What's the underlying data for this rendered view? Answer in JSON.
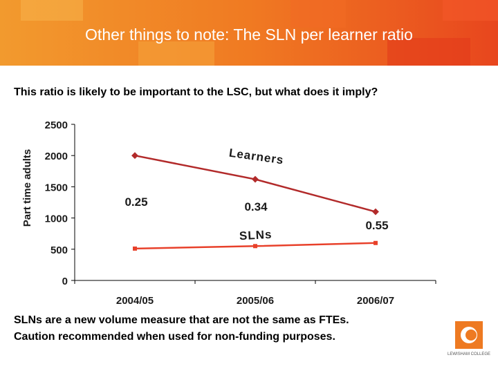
{
  "header": {
    "title": "Other things to note: The SLN per learner ratio"
  },
  "subtitle": "This ratio is likely to be important to the LSC, but what does it imply?",
  "chart_data": {
    "type": "line",
    "y_label": "Part time adults",
    "categories": [
      "2004/05",
      "2005/06",
      "2006/07"
    ],
    "series": [
      {
        "name": "Learners",
        "color": "#b22a2a",
        "values": [
          2000,
          1620,
          1100
        ]
      },
      {
        "name": "SLNs",
        "color": "#e8402a",
        "values": [
          510,
          550,
          600
        ]
      }
    ],
    "annotations": [
      "0.25",
      "0.34",
      "0.55"
    ],
    "ylim": [
      0,
      2500
    ],
    "yticks": [
      0,
      500,
      1000,
      1500,
      2000,
      2500
    ]
  },
  "footer": [
    "SLNs are a new volume measure that are not the same as FTEs.",
    "Caution recommended when used for non-funding purposes."
  ],
  "logo": {
    "text": "LEWISHAM COLLEGE"
  }
}
